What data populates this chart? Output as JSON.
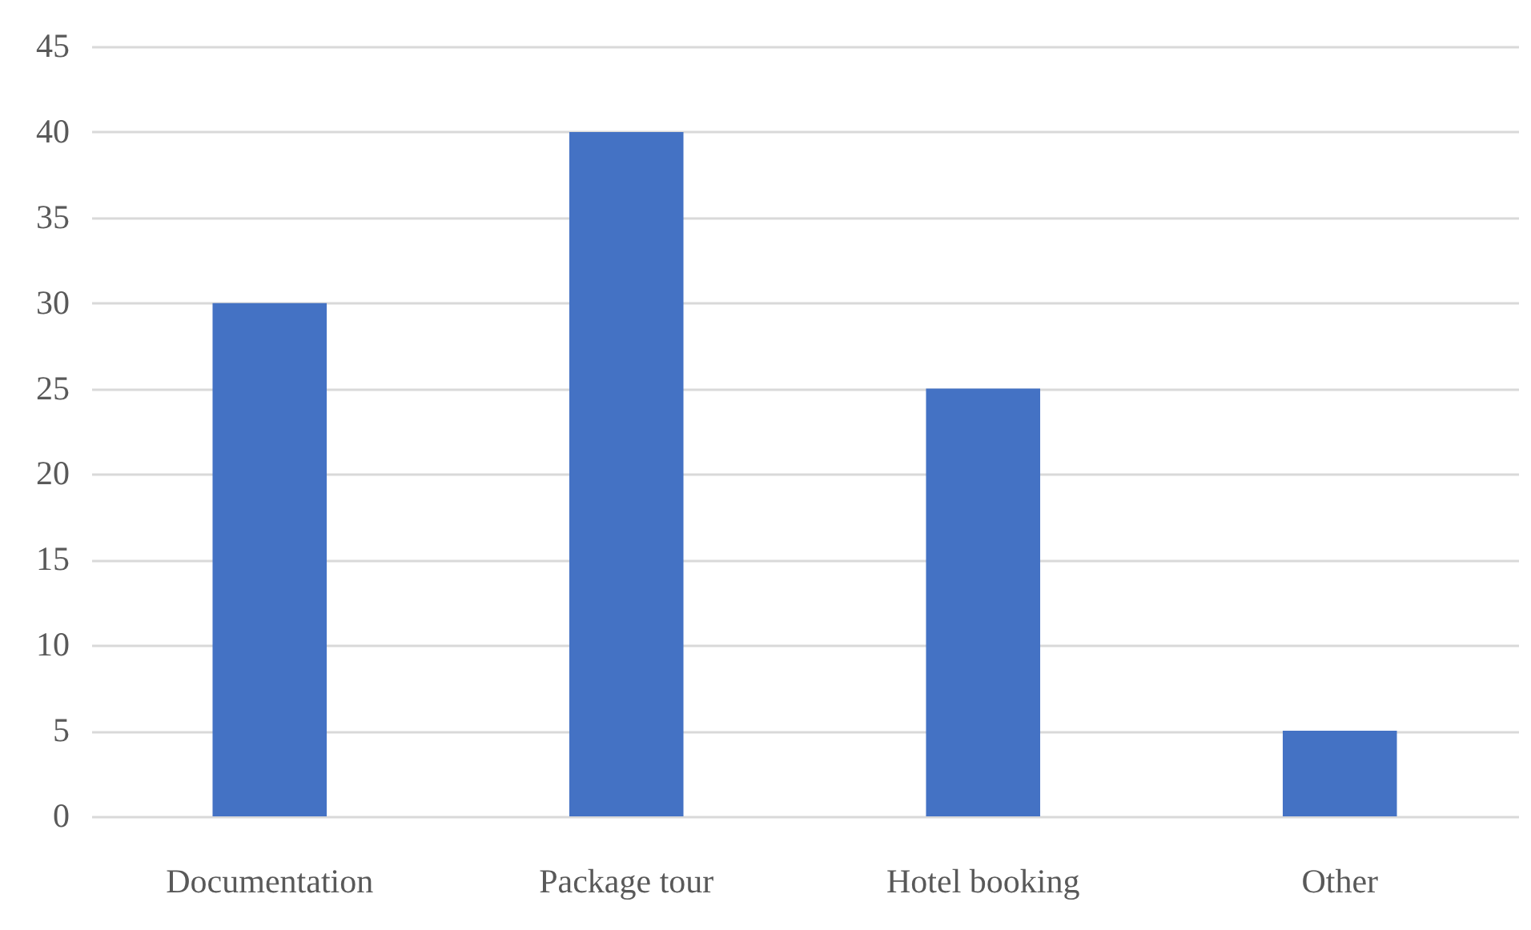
{
  "chart_data": {
    "type": "bar",
    "categories": [
      "Documentation",
      "Package tour",
      "Hotel booking",
      "Other"
    ],
    "values": [
      30,
      40,
      25,
      5
    ],
    "color": "#4472c4",
    "ylim": [
      0,
      45
    ],
    "yticks": [
      0,
      5,
      10,
      15,
      20,
      25,
      30,
      35,
      40,
      45
    ],
    "grid": "y"
  }
}
